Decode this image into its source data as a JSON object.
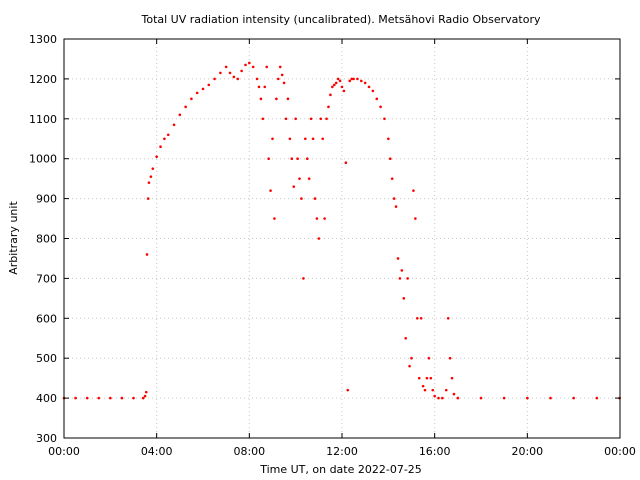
{
  "chart_data": {
    "type": "scatter",
    "title": "Total UV radiation intensity (uncalibrated). Metsähovi Radio Observatory",
    "xlabel": "Time UT, on date 2022-07-25",
    "ylabel": "Arbitrary unit",
    "xlim": [
      "00:00",
      "24:00"
    ],
    "ylim": [
      300,
      1300
    ],
    "x_ticks": [
      "00:00",
      "04:00",
      "08:00",
      "12:00",
      "16:00",
      "20:00",
      "00:00"
    ],
    "y_ticks": [
      300,
      400,
      500,
      600,
      700,
      800,
      900,
      1000,
      1100,
      1200,
      1300
    ],
    "grid": true,
    "point_color": "#ff0000",
    "series": [
      {
        "x": [
          "00:00",
          "00:30",
          "01:00",
          "01:30",
          "02:00",
          "02:30",
          "03:00",
          "03:25",
          "03:30",
          "03:33",
          "03:35",
          "03:38",
          "03:40",
          "03:45",
          "03:50",
          "04:00",
          "04:10",
          "04:20",
          "04:30",
          "04:45",
          "05:00",
          "05:15",
          "05:30",
          "05:45",
          "06:00",
          "06:15",
          "06:30",
          "06:45",
          "07:00",
          "07:10",
          "07:20",
          "07:30",
          "07:40",
          "07:50",
          "08:00",
          "08:10",
          "08:20",
          "08:25",
          "08:30",
          "08:35",
          "08:40",
          "08:45",
          "08:50",
          "08:55",
          "09:00",
          "09:05",
          "09:10",
          "09:15",
          "09:20",
          "09:25",
          "09:30",
          "09:35",
          "09:40",
          "09:45",
          "09:50",
          "09:55",
          "10:00",
          "10:05",
          "10:10",
          "10:15",
          "10:20",
          "10:25",
          "10:30",
          "10:35",
          "10:40",
          "10:45",
          "10:50",
          "10:55",
          "11:00",
          "11:05",
          "11:10",
          "11:15",
          "11:20",
          "11:25",
          "11:30",
          "11:35",
          "11:40",
          "11:45",
          "11:50",
          "11:55",
          "12:00",
          "12:05",
          "12:10",
          "12:15",
          "12:20",
          "12:25",
          "12:30",
          "12:40",
          "12:50",
          "13:00",
          "13:10",
          "13:20",
          "13:30",
          "13:40",
          "13:50",
          "14:00",
          "14:05",
          "14:10",
          "14:15",
          "14:20",
          "14:25",
          "14:30",
          "14:35",
          "14:40",
          "14:45",
          "14:50",
          "14:55",
          "15:00",
          "15:05",
          "15:10",
          "15:15",
          "15:20",
          "15:25",
          "15:30",
          "15:35",
          "15:40",
          "15:45",
          "15:50",
          "15:55",
          "16:00",
          "16:10",
          "16:20",
          "16:30",
          "16:35",
          "16:40",
          "16:45",
          "16:50",
          "17:00",
          "18:00",
          "19:00",
          "20:00",
          "21:00",
          "22:00",
          "23:00",
          "23:59"
        ],
        "y": [
          400,
          400,
          400,
          400,
          400,
          400,
          400,
          400,
          405,
          415,
          760,
          900,
          940,
          955,
          975,
          1005,
          1030,
          1050,
          1060,
          1085,
          1110,
          1130,
          1150,
          1165,
          1175,
          1185,
          1200,
          1215,
          1230,
          1215,
          1205,
          1200,
          1220,
          1235,
          1240,
          1230,
          1200,
          1180,
          1150,
          1100,
          1180,
          1230,
          1000,
          920,
          1050,
          850,
          1150,
          1200,
          1230,
          1210,
          1190,
          1100,
          1150,
          1050,
          1000,
          930,
          1100,
          1000,
          950,
          900,
          700,
          1050,
          1000,
          950,
          1100,
          1050,
          900,
          850,
          800,
          1100,
          1050,
          850,
          1100,
          1130,
          1160,
          1180,
          1185,
          1190,
          1200,
          1195,
          1180,
          1170,
          990,
          420,
          1195,
          1200,
          1200,
          1200,
          1195,
          1190,
          1180,
          1170,
          1150,
          1130,
          1100,
          1050,
          1000,
          950,
          900,
          880,
          750,
          700,
          720,
          650,
          550,
          700,
          480,
          500,
          920,
          850,
          600,
          450,
          600,
          430,
          420,
          450,
          500,
          450,
          420,
          405,
          400,
          400,
          420,
          600,
          500,
          450,
          410,
          400,
          400,
          400,
          400,
          400,
          400,
          400,
          400
        ]
      }
    ]
  }
}
